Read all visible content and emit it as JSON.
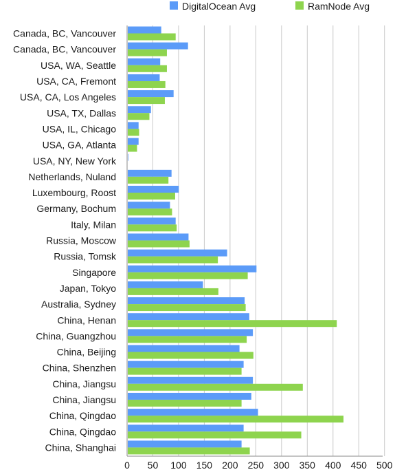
{
  "chart_data": {
    "type": "bar",
    "orientation": "horizontal",
    "categories": [
      "Canada, BC, Vancouver",
      "Canada, BC, Vancouver",
      "USA, WA, Seattle",
      "USA, CA, Fremont",
      "USA, CA, Los Angeles",
      "USA, TX, Dallas",
      "USA, IL, Chicago",
      "USA, GA, Atlanta",
      "USA, NY, New York",
      "Netherlands, Nuland",
      "Luxembourg, Roost",
      "Germany, Bochum",
      "Italy, Milan",
      "Russia, Moscow",
      "Russia, Tomsk",
      "Singapore",
      "Japan, Tokyo",
      "Australia, Sydney",
      "China, Henan",
      "China, Guangzhou",
      "China, Beijing",
      "China, Shenzhen",
      "China, Jiangsu",
      "China, Jiangsu",
      "China, Qingdao",
      "China, Qingdao",
      "China, Shanghai"
    ],
    "series": [
      {
        "name": "DigitalOcean Avg",
        "color": "#5b9bf8",
        "values": [
          65,
          117,
          63,
          62,
          89,
          45,
          21,
          21,
          1,
          85,
          99,
          82,
          93,
          118,
          193,
          250,
          146,
          227,
          236,
          243,
          217,
          225,
          243,
          240,
          253,
          225,
          221
        ]
      },
      {
        "name": "RamNode Avg",
        "color": "#8ed44e",
        "values": [
          93,
          76,
          76,
          73,
          72,
          42,
          22,
          18,
          0,
          79,
          92,
          86,
          95,
          120,
          175,
          233,
          176,
          229,
          406,
          231,
          244,
          221,
          340,
          221,
          419,
          337,
          237
        ]
      }
    ],
    "x_ticks": [
      "0",
      "50",
      "100",
      "150",
      "200",
      "250",
      "300",
      "350",
      "400",
      "450",
      "500"
    ],
    "xlim": [
      0,
      500
    ],
    "grid": true,
    "legend": "top-right",
    "title": "",
    "xlabel": "",
    "ylabel": ""
  }
}
